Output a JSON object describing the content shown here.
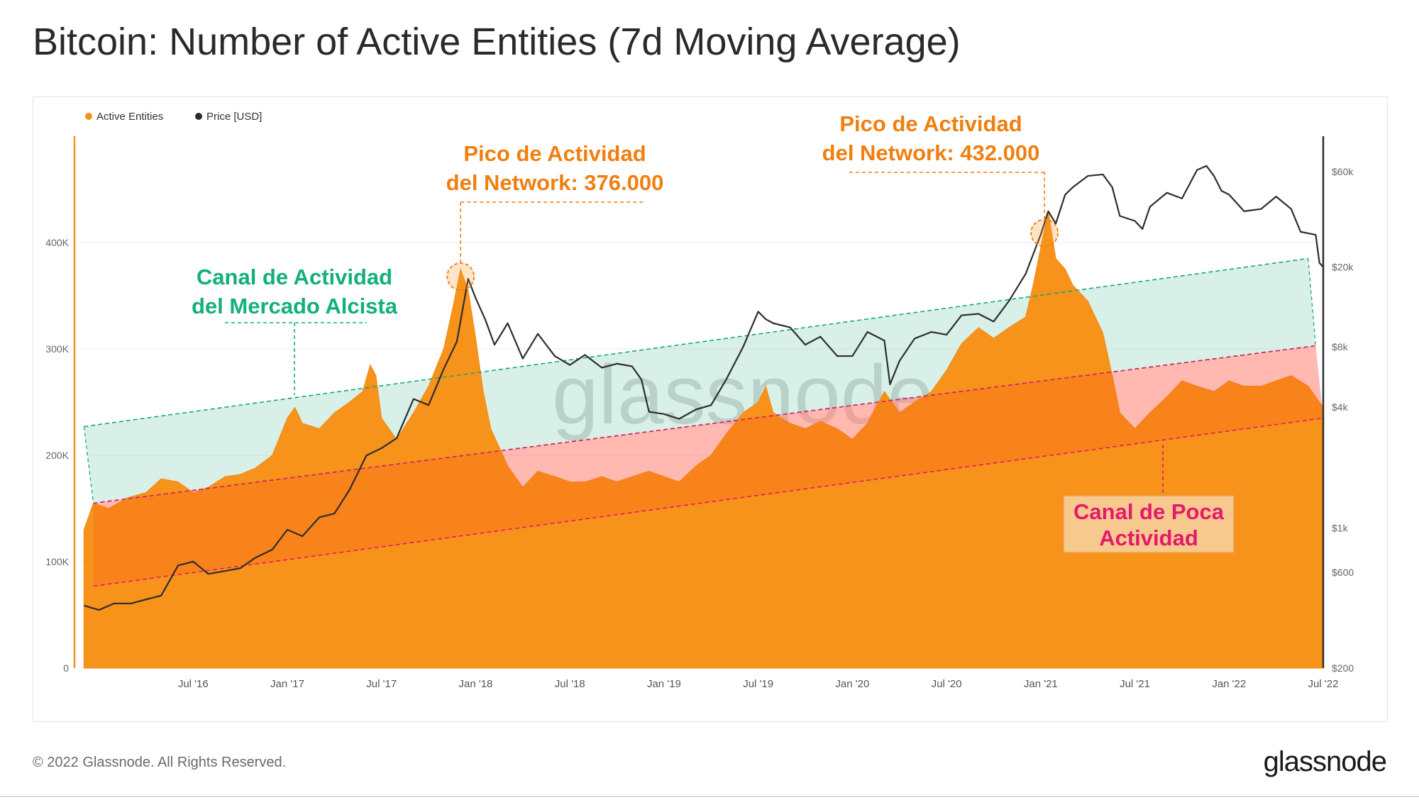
{
  "title": "Bitcoin: Number of Active Entities (7d Moving Average)",
  "footer": {
    "copyright": "© 2022 Glassnode. All Rights Reserved.",
    "brand": "glassnode"
  },
  "watermark": "glassnode",
  "colors": {
    "active_entities": "#f7931a",
    "price": "#2d2d2d",
    "bull_channel": "#19a974",
    "low_channel": "#e6196b",
    "annotation_orange": "#f07f10"
  },
  "chart_data": {
    "type": "area",
    "legend": [
      {
        "label": "Active Entities",
        "color": "#f7931a"
      },
      {
        "label": "Price [USD]",
        "color": "#2d2d2d"
      }
    ],
    "x_tick_labels": [
      "Jul '16",
      "Jan '17",
      "Jul '17",
      "Jan '18",
      "Jul '18",
      "Jan '19",
      "Jul '19",
      "Jan '20",
      "Jul '20",
      "Jan '21",
      "Jul '21",
      "Jan '22",
      "Jul '22"
    ],
    "x_tick_values": [
      2016.5,
      2017.0,
      2017.5,
      2018.0,
      2018.5,
      2019.0,
      2019.5,
      2020.0,
      2020.5,
      2021.0,
      2021.5,
      2022.0,
      2022.5
    ],
    "xlim": [
      2015.9,
      2022.5
    ],
    "y_left": {
      "ticks": [
        0,
        100000,
        200000,
        300000,
        400000
      ],
      "tick_labels": [
        "0",
        "100K",
        "200K",
        "300K",
        "400K"
      ],
      "range": [
        0,
        500000
      ]
    },
    "y_right": {
      "scale": "log",
      "ticks": [
        200,
        600,
        1000,
        4000,
        8000,
        20000,
        60000
      ],
      "tick_labels": [
        "$200",
        "$600",
        "$1k",
        "$4k",
        "$8k",
        "$20k",
        "$60k"
      ],
      "range": [
        200,
        90000
      ]
    },
    "series": [
      {
        "name": "Active Entities",
        "axis": "left",
        "points": [
          [
            2015.92,
            130000
          ],
          [
            2015.97,
            155000
          ],
          [
            2016.05,
            150000
          ],
          [
            2016.15,
            160000
          ],
          [
            2016.25,
            165000
          ],
          [
            2016.33,
            178000
          ],
          [
            2016.42,
            175000
          ],
          [
            2016.5,
            165000
          ],
          [
            2016.58,
            170000
          ],
          [
            2016.67,
            180000
          ],
          [
            2016.75,
            182000
          ],
          [
            2016.83,
            188000
          ],
          [
            2016.92,
            200000
          ],
          [
            2017.0,
            235000
          ],
          [
            2017.04,
            245000
          ],
          [
            2017.08,
            230000
          ],
          [
            2017.17,
            225000
          ],
          [
            2017.25,
            240000
          ],
          [
            2017.33,
            250000
          ],
          [
            2017.4,
            260000
          ],
          [
            2017.44,
            285000
          ],
          [
            2017.47,
            275000
          ],
          [
            2017.5,
            235000
          ],
          [
            2017.58,
            215000
          ],
          [
            2017.67,
            240000
          ],
          [
            2017.75,
            265000
          ],
          [
            2017.83,
            300000
          ],
          [
            2017.88,
            340000
          ],
          [
            2017.92,
            375000
          ],
          [
            2017.96,
            355000
          ],
          [
            2018.0,
            310000
          ],
          [
            2018.04,
            260000
          ],
          [
            2018.08,
            225000
          ],
          [
            2018.17,
            190000
          ],
          [
            2018.25,
            170000
          ],
          [
            2018.33,
            185000
          ],
          [
            2018.42,
            180000
          ],
          [
            2018.5,
            175000
          ],
          [
            2018.58,
            175000
          ],
          [
            2018.67,
            180000
          ],
          [
            2018.75,
            175000
          ],
          [
            2018.83,
            180000
          ],
          [
            2018.92,
            185000
          ],
          [
            2019.0,
            180000
          ],
          [
            2019.08,
            175000
          ],
          [
            2019.17,
            190000
          ],
          [
            2019.25,
            200000
          ],
          [
            2019.33,
            220000
          ],
          [
            2019.42,
            240000
          ],
          [
            2019.5,
            250000
          ],
          [
            2019.54,
            265000
          ],
          [
            2019.58,
            240000
          ],
          [
            2019.67,
            230000
          ],
          [
            2019.75,
            225000
          ],
          [
            2019.83,
            232000
          ],
          [
            2019.92,
            225000
          ],
          [
            2020.0,
            215000
          ],
          [
            2020.08,
            230000
          ],
          [
            2020.17,
            260000
          ],
          [
            2020.25,
            240000
          ],
          [
            2020.33,
            250000
          ],
          [
            2020.42,
            260000
          ],
          [
            2020.5,
            280000
          ],
          [
            2020.58,
            305000
          ],
          [
            2020.67,
            320000
          ],
          [
            2020.75,
            310000
          ],
          [
            2020.83,
            320000
          ],
          [
            2020.92,
            330000
          ],
          [
            2020.96,
            360000
          ],
          [
            2021.0,
            395000
          ],
          [
            2021.04,
            430000
          ],
          [
            2021.08,
            385000
          ],
          [
            2021.13,
            375000
          ],
          [
            2021.17,
            360000
          ],
          [
            2021.25,
            345000
          ],
          [
            2021.33,
            315000
          ],
          [
            2021.38,
            275000
          ],
          [
            2021.42,
            240000
          ],
          [
            2021.5,
            225000
          ],
          [
            2021.58,
            240000
          ],
          [
            2021.67,
            255000
          ],
          [
            2021.75,
            270000
          ],
          [
            2021.83,
            265000
          ],
          [
            2021.92,
            260000
          ],
          [
            2022.0,
            270000
          ],
          [
            2022.08,
            265000
          ],
          [
            2022.17,
            265000
          ],
          [
            2022.25,
            270000
          ],
          [
            2022.33,
            275000
          ],
          [
            2022.42,
            265000
          ],
          [
            2022.46,
            255000
          ],
          [
            2022.5,
            245000
          ]
        ]
      },
      {
        "name": "Price [USD]",
        "axis": "right",
        "points": [
          [
            2015.92,
            410
          ],
          [
            2016.0,
            390
          ],
          [
            2016.08,
            420
          ],
          [
            2016.17,
            420
          ],
          [
            2016.25,
            440
          ],
          [
            2016.33,
            460
          ],
          [
            2016.42,
            650
          ],
          [
            2016.5,
            680
          ],
          [
            2016.58,
            590
          ],
          [
            2016.67,
            610
          ],
          [
            2016.75,
            630
          ],
          [
            2016.83,
            710
          ],
          [
            2016.92,
            780
          ],
          [
            2017.0,
            980
          ],
          [
            2017.08,
            910
          ],
          [
            2017.17,
            1130
          ],
          [
            2017.25,
            1180
          ],
          [
            2017.33,
            1550
          ],
          [
            2017.42,
            2300
          ],
          [
            2017.5,
            2500
          ],
          [
            2017.58,
            2800
          ],
          [
            2017.67,
            4400
          ],
          [
            2017.75,
            4100
          ],
          [
            2017.83,
            6200
          ],
          [
            2017.9,
            8500
          ],
          [
            2017.96,
            17500
          ],
          [
            2018.0,
            14000
          ],
          [
            2018.05,
            11000
          ],
          [
            2018.1,
            8200
          ],
          [
            2018.17,
            10500
          ],
          [
            2018.25,
            7000
          ],
          [
            2018.33,
            9300
          ],
          [
            2018.42,
            7200
          ],
          [
            2018.5,
            6500
          ],
          [
            2018.58,
            7300
          ],
          [
            2018.67,
            6300
          ],
          [
            2018.75,
            6600
          ],
          [
            2018.83,
            6400
          ],
          [
            2018.88,
            5500
          ],
          [
            2018.92,
            3800
          ],
          [
            2019.0,
            3700
          ],
          [
            2019.08,
            3500
          ],
          [
            2019.17,
            3900
          ],
          [
            2019.25,
            4100
          ],
          [
            2019.33,
            5500
          ],
          [
            2019.42,
            8000
          ],
          [
            2019.5,
            12000
          ],
          [
            2019.54,
            11000
          ],
          [
            2019.58,
            10500
          ],
          [
            2019.67,
            10000
          ],
          [
            2019.75,
            8200
          ],
          [
            2019.83,
            9000
          ],
          [
            2019.92,
            7200
          ],
          [
            2020.0,
            7200
          ],
          [
            2020.08,
            9500
          ],
          [
            2020.17,
            8600
          ],
          [
            2020.2,
            5200
          ],
          [
            2020.25,
            6800
          ],
          [
            2020.33,
            8800
          ],
          [
            2020.42,
            9500
          ],
          [
            2020.5,
            9200
          ],
          [
            2020.58,
            11500
          ],
          [
            2020.67,
            11700
          ],
          [
            2020.75,
            10700
          ],
          [
            2020.83,
            13500
          ],
          [
            2020.92,
            18500
          ],
          [
            2021.0,
            29000
          ],
          [
            2021.04,
            38000
          ],
          [
            2021.08,
            33000
          ],
          [
            2021.13,
            46000
          ],
          [
            2021.17,
            50000
          ],
          [
            2021.25,
            57000
          ],
          [
            2021.33,
            58000
          ],
          [
            2021.38,
            50000
          ],
          [
            2021.42,
            36000
          ],
          [
            2021.5,
            34000
          ],
          [
            2021.54,
            31000
          ],
          [
            2021.58,
            40000
          ],
          [
            2021.67,
            47000
          ],
          [
            2021.75,
            44000
          ],
          [
            2021.83,
            61000
          ],
          [
            2021.88,
            64000
          ],
          [
            2021.92,
            57000
          ],
          [
            2021.96,
            48000
          ],
          [
            2022.0,
            46000
          ],
          [
            2022.08,
            38000
          ],
          [
            2022.17,
            39000
          ],
          [
            2022.25,
            45000
          ],
          [
            2022.33,
            39000
          ],
          [
            2022.38,
            30000
          ],
          [
            2022.42,
            29500
          ],
          [
            2022.46,
            29000
          ],
          [
            2022.48,
            21000
          ],
          [
            2022.5,
            20000
          ]
        ]
      }
    ],
    "channels": [
      {
        "name": "bull_market_activity",
        "upper": [
          [
            2015.92,
            227000
          ],
          [
            2022.42,
            385000
          ]
        ],
        "lower": [
          [
            2015.97,
            155000
          ],
          [
            2022.46,
            303000
          ]
        ]
      },
      {
        "name": "low_activity",
        "upper": [
          [
            2015.97,
            155000
          ],
          [
            2022.46,
            303000
          ]
        ],
        "lower": [
          [
            2015.97,
            77000
          ],
          [
            2022.5,
            235000
          ]
        ]
      }
    ],
    "annotations": [
      {
        "text_line1": "Pico de Actividad",
        "text_line2": "del Network: 376.000",
        "x": 2017.92,
        "y": 368000
      },
      {
        "text_line1": "Pico de Actividad",
        "text_line2": "del Network: 432.000",
        "x": 2021.02,
        "y": 409000
      },
      {
        "text_line1": "Canal de Actividad",
        "text_line2": "del Mercado Alcista"
      },
      {
        "text_line1": "Canal de Poca",
        "text_line2": "Actividad"
      }
    ]
  }
}
